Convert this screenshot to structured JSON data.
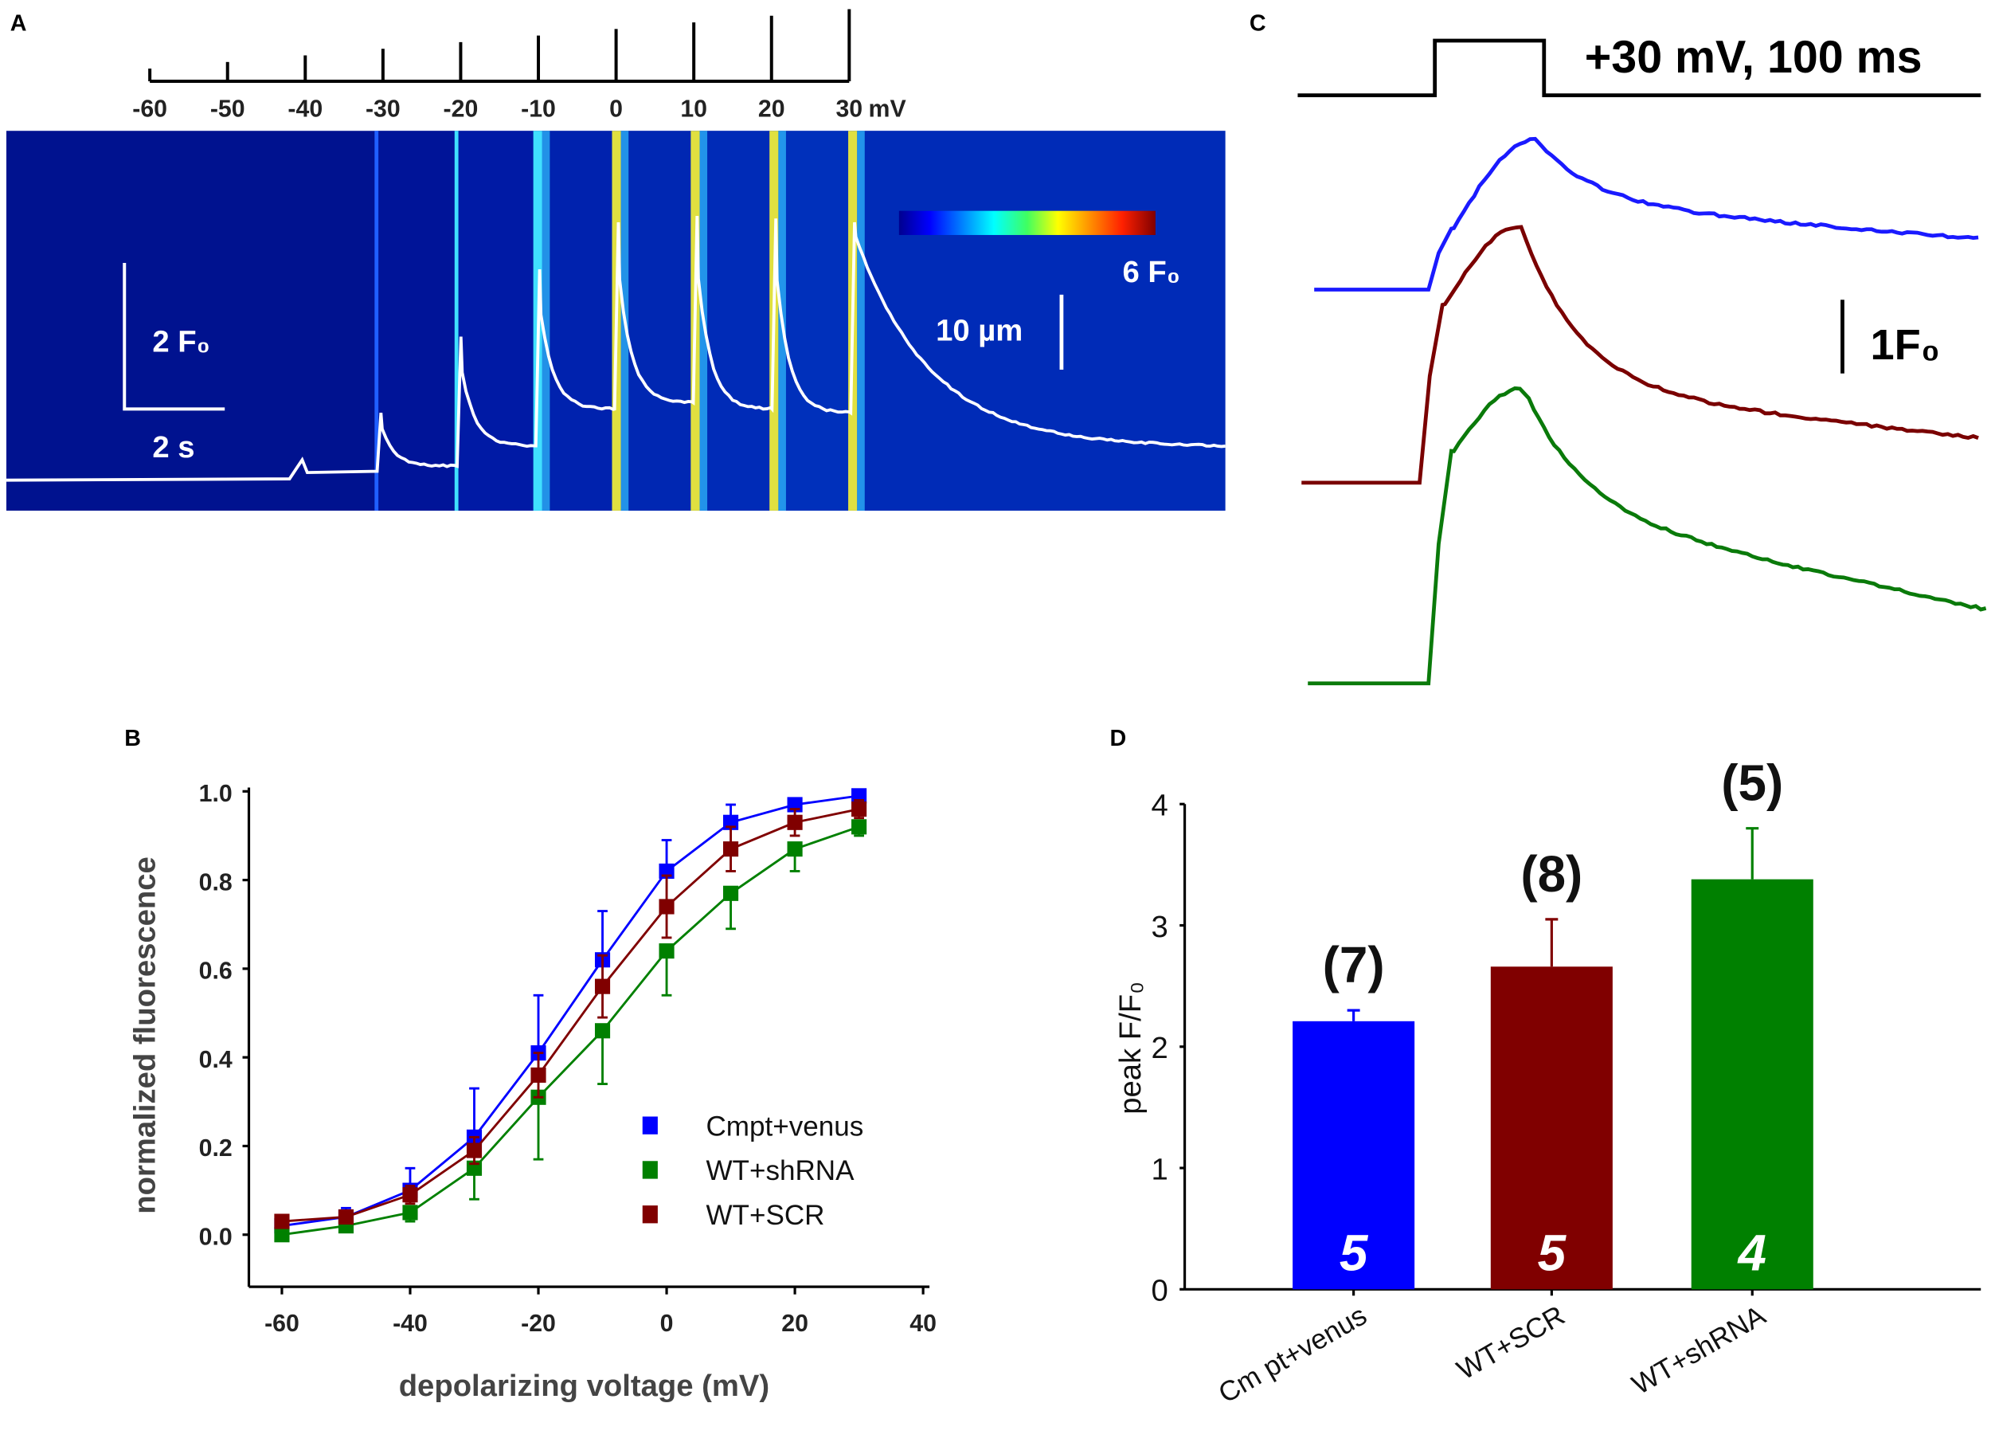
{
  "panel_labels": {
    "a": "A",
    "b": "B",
    "c": "C",
    "d": "D"
  },
  "panel_a": {
    "voltage_ticks": [
      "-60",
      "-50",
      "-40",
      "-30",
      "-20",
      "-10",
      "0",
      "10",
      "20",
      "30"
    ],
    "voltage_unit": "mV",
    "colorbar_max_label": "6 F₀",
    "space_scale_label": "10 µm",
    "fluor_scale_label": "2 F₀",
    "time_scale_label": "2 s",
    "colors": {
      "background": "#00128f",
      "trace": "#ffffff"
    }
  },
  "panel_c": {
    "protocol_label": "+30 mV, 100 ms",
    "scale_label": "1F₀",
    "trace_colors": [
      "#1a1aff",
      "#7a0000",
      "#0a7a0a"
    ]
  },
  "chart_data": [
    {
      "type": "scatter",
      "panel": "B",
      "xlabel": "depolarizing voltage (mV)",
      "ylabel": "normalized fluorescence",
      "xlim": [
        -65,
        40
      ],
      "ylim": [
        -0.1,
        1.0
      ],
      "xticks": [
        "-60",
        "-40",
        "-20",
        "0",
        "20",
        "40"
      ],
      "yticks": [
        "0.0",
        "0.2",
        "0.4",
        "0.6",
        "0.8",
        "1.0"
      ],
      "legend_position": "bottom-right",
      "x": [
        -60,
        -50,
        -40,
        -30,
        -20,
        -10,
        0,
        10,
        20,
        30
      ],
      "series": [
        {
          "name": "Cmpt+venus",
          "color": "#0000ff",
          "values": [
            0.02,
            0.04,
            0.1,
            0.22,
            0.41,
            0.62,
            0.82,
            0.93,
            0.97,
            0.99
          ],
          "err": [
            0.01,
            0.02,
            0.05,
            0.11,
            0.13,
            0.11,
            0.07,
            0.04,
            0.01,
            0.01
          ]
        },
        {
          "name": "WT+shRNA",
          "color": "#008000",
          "values": [
            0.0,
            0.02,
            0.05,
            0.15,
            0.31,
            0.46,
            0.64,
            0.77,
            0.87,
            0.92
          ],
          "err": [
            0.01,
            0.01,
            0.02,
            0.07,
            0.14,
            0.12,
            0.1,
            0.08,
            0.05,
            0.02
          ]
        },
        {
          "name": "WT+SCR",
          "color": "#800000",
          "values": [
            0.03,
            0.04,
            0.09,
            0.19,
            0.36,
            0.56,
            0.74,
            0.87,
            0.93,
            0.96
          ],
          "err": [
            0.01,
            0.01,
            0.02,
            0.03,
            0.05,
            0.07,
            0.07,
            0.05,
            0.03,
            0.02
          ]
        }
      ]
    },
    {
      "type": "bar",
      "panel": "D",
      "ylabel": "peak F/F₀",
      "ylim": [
        0,
        4
      ],
      "yticks": [
        "0",
        "1",
        "2",
        "3",
        "4"
      ],
      "categories": [
        "Cm pt+venus",
        "WT+SCR",
        "WT+shRNA"
      ],
      "values": [
        2.21,
        2.66,
        3.38
      ],
      "err": [
        0.09,
        0.39,
        0.42
      ],
      "n_cells": [
        "(7)",
        "(8)",
        "(5)"
      ],
      "n_animals": [
        "5",
        "5",
        "4"
      ],
      "colors": [
        "#0000ff",
        "#800000",
        "#008000"
      ]
    }
  ]
}
